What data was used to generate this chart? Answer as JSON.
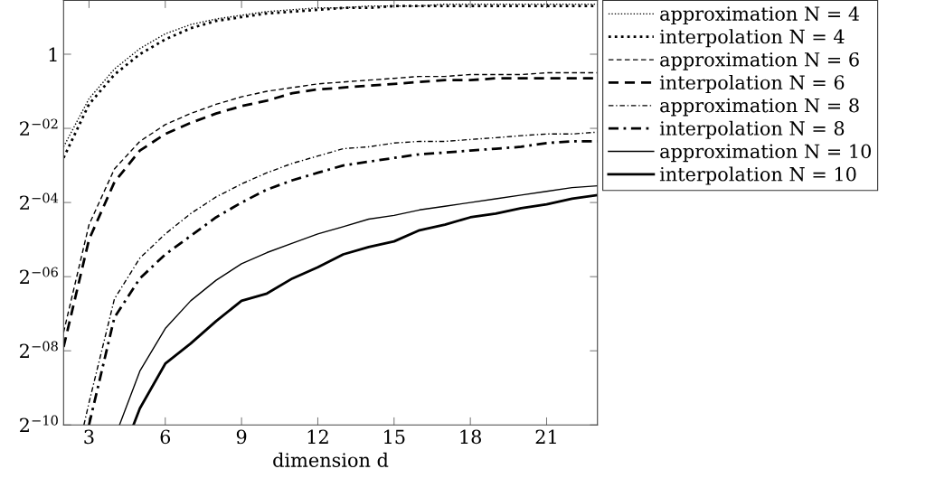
{
  "chart_data": {
    "type": "line",
    "xlabel": "dimension d",
    "log": "y",
    "legend": "right",
    "grid": false,
    "marker": "none",
    "xlim": [
      2,
      23
    ],
    "xticks": [
      3,
      6,
      9,
      12,
      15,
      18,
      21
    ],
    "ylim": [
      0.0009765625,
      2.73
    ],
    "yticks": [
      {
        "value": 1,
        "label": "1"
      },
      {
        "value": 0.25,
        "label": "2$^{−02}$"
      },
      {
        "value": 0.0625,
        "label": "2$^{−04}$"
      },
      {
        "value": 0.015625,
        "label": "2$^{−06}$"
      },
      {
        "value": 0.00390625,
        "label": "2$^{−08}$"
      },
      {
        "value": 0.0009765625,
        "label": "2$^{−10}$"
      }
    ],
    "series": [
      {
        "name": "approximation N = 4",
        "color": "#000000",
        "line_style": "dotted",
        "x": [
          2,
          3,
          4,
          5,
          6,
          7,
          8,
          9,
          10,
          11,
          12,
          13,
          14,
          15,
          16,
          17,
          18,
          19,
          20,
          21,
          22,
          23
        ],
        "values": [
          0.177,
          0.435,
          0.758,
          1.11,
          1.464,
          1.741,
          1.932,
          2.071,
          2.219,
          2.297,
          2.378,
          2.378,
          2.462,
          2.462,
          2.462,
          2.549,
          2.549,
          2.549,
          2.549,
          2.549,
          2.549,
          2.549
        ]
      },
      {
        "name": "interpolation N = 4",
        "color": "#000000",
        "line_style": "dotted",
        "x": [
          2,
          3,
          4,
          5,
          6,
          7,
          8,
          9,
          10,
          11,
          12,
          13,
          14,
          15,
          16,
          17,
          18,
          19,
          20,
          21,
          22,
          23
        ],
        "values": [
          0.144,
          0.392,
          0.683,
          1,
          1.32,
          1.625,
          1.866,
          2,
          2.144,
          2.219,
          2.297,
          2.378,
          2.378,
          2.462,
          2.462,
          2.462,
          2.462,
          2.462,
          2.462,
          2.462,
          2.462,
          2.462
        ]
      },
      {
        "name": "approximation N = 6",
        "color": "#000000",
        "line_style": "dashed",
        "x": [
          2,
          3,
          4,
          5,
          6,
          7,
          8,
          9,
          10,
          11,
          12,
          13,
          14,
          15,
          16,
          17,
          18,
          19,
          20,
          21,
          22,
          23
        ],
        "values": [
          0.00552,
          0.0412,
          0.117,
          0.196,
          0.268,
          0.33,
          0.392,
          0.451,
          0.5,
          0.536,
          0.574,
          0.595,
          0.616,
          0.637,
          0.66,
          0.66,
          0.683,
          0.683,
          0.683,
          0.707,
          0.707,
          0.707
        ]
      },
      {
        "name": "interpolation N = 6",
        "color": "#000000",
        "line_style": "dashed",
        "x": [
          2,
          3,
          4,
          5,
          6,
          7,
          8,
          9,
          10,
          11,
          12,
          13,
          14,
          15,
          16,
          17,
          18,
          19,
          20,
          21,
          22,
          23
        ],
        "values": [
          0.00419,
          0.03125,
          0.0915,
          0.165,
          0.225,
          0.277,
          0.33,
          0.379,
          0.42,
          0.483,
          0.518,
          0.536,
          0.555,
          0.574,
          0.595,
          0.616,
          0.616,
          0.637,
          0.637,
          0.637,
          0.637,
          0.637
        ]
      },
      {
        "name": "approximation N = 8",
        "color": "#000000",
        "line_style": "dashdot",
        "x": [
          2.8,
          3,
          4,
          5,
          6,
          7,
          8,
          9,
          10,
          11,
          12,
          13,
          14,
          15,
          16,
          17,
          18,
          19,
          20,
          21,
          22,
          23
        ],
        "values": [
          0.000977,
          0.00148,
          0.0103,
          0.0221,
          0.0347,
          0.0508,
          0.0694,
          0.0884,
          0.109,
          0.13,
          0.149,
          0.171,
          0.177,
          0.19,
          0.196,
          0.196,
          0.203,
          0.21,
          0.218,
          0.225,
          0.225,
          0.233
        ]
      },
      {
        "name": "interpolation N = 8",
        "color": "#000000",
        "line_style": "dashdot",
        "x": [
          3,
          4,
          5,
          6,
          7,
          8,
          9,
          10,
          11,
          12,
          13,
          14,
          15,
          16,
          17,
          18,
          19,
          20,
          21,
          22,
          23
        ],
        "values": [
          0.000977,
          0.00729,
          0.0151,
          0.0237,
          0.0335,
          0.0474,
          0.0625,
          0.0796,
          0.0947,
          0.109,
          0.125,
          0.134,
          0.144,
          0.154,
          0.159,
          0.165,
          0.171,
          0.177,
          0.19,
          0.196,
          0.196
        ]
      },
      {
        "name": "approximation N = 10",
        "color": "#000000",
        "line_style": "solid",
        "x": [
          4.2,
          5,
          6,
          7,
          8,
          9,
          10,
          11,
          12,
          13,
          14,
          15,
          16,
          17,
          18,
          19,
          20,
          21,
          22,
          23
        ],
        "values": [
          0.000977,
          0.00267,
          0.00592,
          0.00995,
          0.0146,
          0.0199,
          0.0245,
          0.0292,
          0.0347,
          0.0398,
          0.0458,
          0.0491,
          0.0544,
          0.0583,
          0.0625,
          0.067,
          0.0718,
          0.077,
          0.0825,
          0.0854
        ]
      },
      {
        "name": "interpolation N = 10",
        "color": "#000000",
        "line_style": "solid",
        "x": [
          4.75,
          5,
          6,
          7,
          8,
          9,
          10,
          11,
          12,
          13,
          14,
          15,
          16,
          17,
          18,
          19,
          20,
          21,
          22,
          23
        ],
        "values": [
          0.000977,
          0.00133,
          0.00307,
          0.00448,
          0.0068,
          0.00995,
          0.0114,
          0.0151,
          0.0186,
          0.0237,
          0.0272,
          0.0302,
          0.0372,
          0.0413,
          0.0474,
          0.0508,
          0.0563,
          0.0604,
          0.067,
          0.0718
        ]
      }
    ]
  }
}
